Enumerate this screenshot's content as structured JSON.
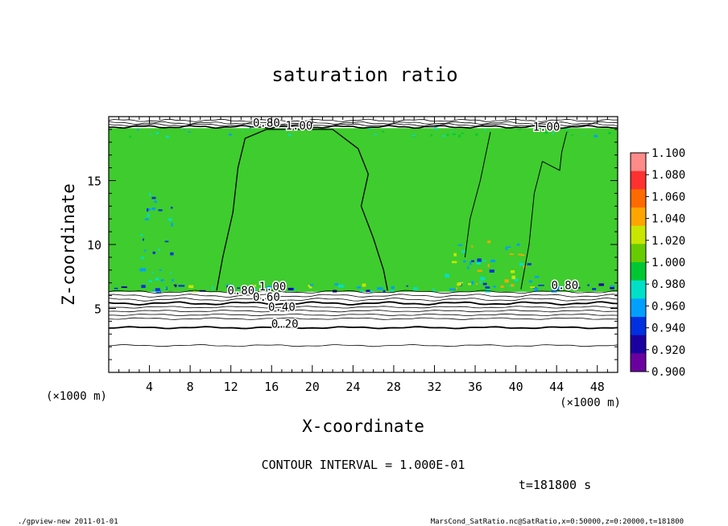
{
  "chart_data": {
    "type": "heatmap",
    "title": "saturation ratio",
    "xlabel": "X-coordinate",
    "ylabel": "Z-coordinate",
    "x_unit_label": "(×1000 m)",
    "y_unit_label": "(×1000 m)",
    "xlim": [
      0,
      50
    ],
    "ylim": [
      0,
      20
    ],
    "x_ticks": [
      4,
      8,
      12,
      16,
      20,
      24,
      28,
      32,
      36,
      40,
      44,
      48
    ],
    "y_ticks": [
      5,
      10,
      15
    ],
    "colorbar": {
      "levels": [
        "1.100",
        "1.080",
        "1.060",
        "1.040",
        "1.020",
        "1.000",
        "0.980",
        "0.960",
        "0.940",
        "0.920",
        "0.900"
      ],
      "colors": [
        "#ff8a8a",
        "#ff3030",
        "#ff6a00",
        "#ffa500",
        "#c8e600",
        "#66cc00",
        "#00c832",
        "#00e0c8",
        "#00a0ff",
        "#0030e0",
        "#1a00a0",
        "#6a00a0"
      ]
    },
    "background_color": "#3fcc2e",
    "contour_labels": [
      {
        "text": "0.80",
        "x": 15.5,
        "y": 19.2
      },
      {
        "text": "1.00",
        "x": 18.7,
        "y": 19.0
      },
      {
        "text": "1.00",
        "x": 43.0,
        "y": 18.9
      },
      {
        "text": "0.80",
        "x": 13.0,
        "y": 6.1
      },
      {
        "text": "1.00",
        "x": 16.1,
        "y": 6.4
      },
      {
        "text": "0.60",
        "x": 15.5,
        "y": 5.6
      },
      {
        "text": "0.40",
        "x": 17.0,
        "y": 4.8
      },
      {
        "text": "0.20",
        "x": 17.3,
        "y": 3.5
      },
      {
        "text": "0.80",
        "x": 44.8,
        "y": 6.5
      }
    ],
    "lower_contours_z": [
      6.3,
      6.0,
      5.7,
      5.4,
      5.1,
      4.8,
      4.5,
      4.2,
      3.5,
      2.1
    ],
    "upper_contours_z": [
      19.7,
      19.5,
      19.35,
      19.2
    ],
    "contour_interval": "CONTOUR INTERVAL = 1.000E-01",
    "time": "t=181800 s"
  },
  "footer": {
    "left": "./gpview-new  2011-01-01",
    "right": "MarsCond_SatRatio.nc@SatRatio,x=0:50000,z=0:20000,t=181800"
  }
}
